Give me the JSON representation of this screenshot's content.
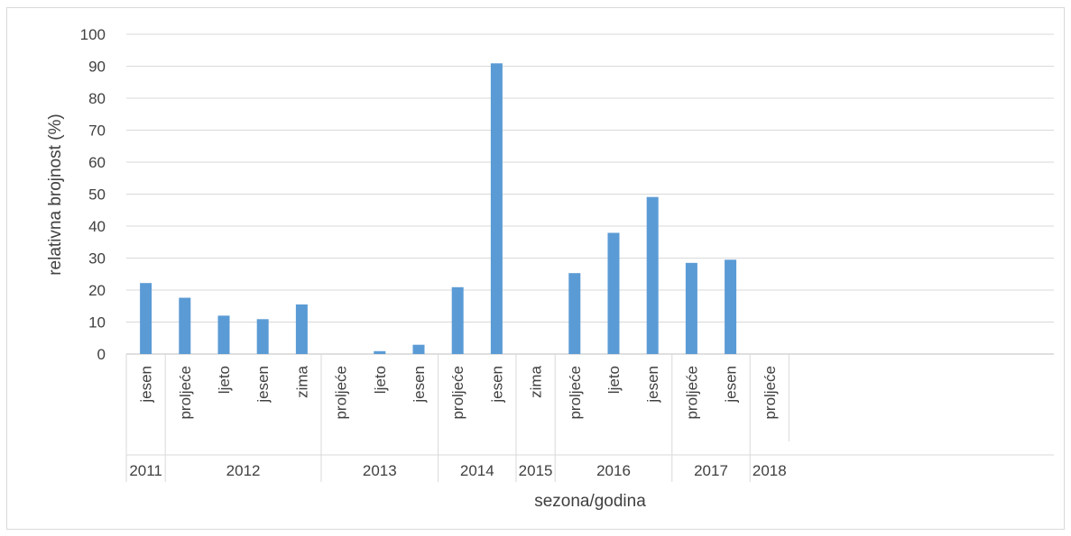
{
  "chart_data": {
    "type": "bar",
    "ylabel": "relativna brojnost (%)",
    "xlabel": "sezona/godina",
    "ylim": [
      0,
      100
    ],
    "yticks": [
      "0",
      "10",
      "20",
      "30",
      "40",
      "50",
      "60",
      "70",
      "80",
      "90",
      "100"
    ],
    "grid": true,
    "bar_color": "#5b9bd5",
    "groups": [
      {
        "year": "2011",
        "categories": [
          "jesen"
        ],
        "values": [
          22.2
        ]
      },
      {
        "year": "2012",
        "categories": [
          "proljeće",
          "ljeto",
          "jesen",
          "zima"
        ],
        "values": [
          17.6,
          12.0,
          10.9,
          15.5
        ]
      },
      {
        "year": "2013",
        "categories": [
          "proljeće",
          "ljeto",
          "jesen"
        ],
        "values": [
          0,
          0.9,
          2.9
        ]
      },
      {
        "year": "2014",
        "categories": [
          "proljeće",
          "jesen"
        ],
        "values": [
          20.9,
          90.9
        ]
      },
      {
        "year": "2015",
        "categories": [
          "zima"
        ],
        "values": [
          0
        ]
      },
      {
        "year": "2016",
        "categories": [
          "proljeće",
          "ljeto",
          "jesen"
        ],
        "values": [
          25.3,
          37.9,
          49.1
        ]
      },
      {
        "year": "2017",
        "categories": [
          "proljeće",
          "jesen"
        ],
        "values": [
          28.5,
          29.5
        ]
      },
      {
        "year": "2018",
        "categories": [
          "proljeće"
        ],
        "values": [
          0
        ]
      }
    ]
  }
}
